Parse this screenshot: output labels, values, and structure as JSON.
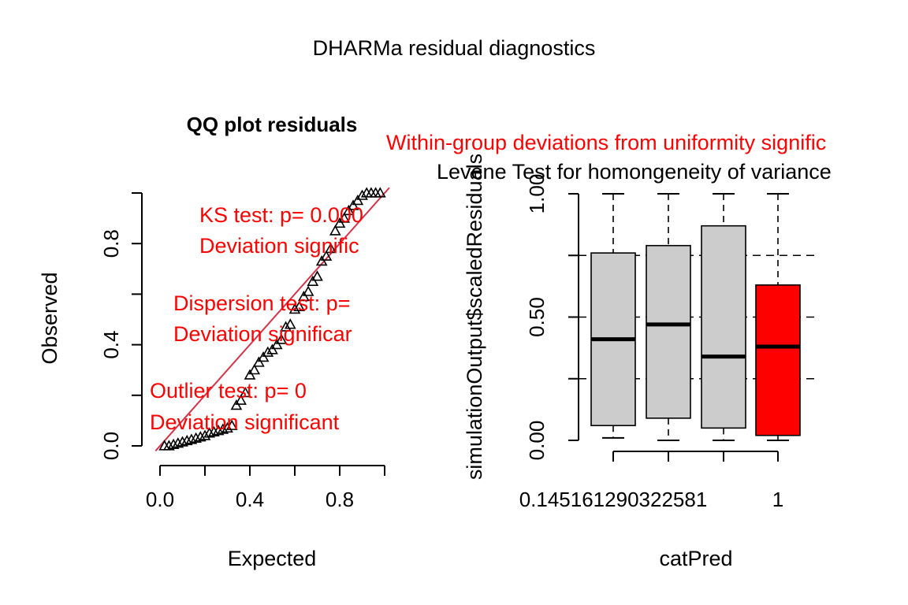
{
  "title": "DHARMa residual diagnostics",
  "chart_data": [
    {
      "type": "scatter",
      "title": "QQ plot residuals",
      "xlabel": "Expected",
      "ylabel": "Observed",
      "xlim": [
        0,
        1
      ],
      "ylim": [
        0,
        1
      ],
      "xticks": [
        "0.0",
        "0.4",
        "0.8"
      ],
      "yticks": [
        "0.0",
        "0.4",
        "0.8"
      ],
      "grid": false,
      "reference_line": {
        "slope": 1,
        "intercept": 0,
        "color": "#d4344a"
      },
      "marker": "triangle",
      "x": [
        0.02,
        0.04,
        0.06,
        0.08,
        0.1,
        0.12,
        0.14,
        0.16,
        0.18,
        0.2,
        0.22,
        0.24,
        0.26,
        0.28,
        0.3,
        0.32,
        0.34,
        0.36,
        0.38,
        0.4,
        0.42,
        0.44,
        0.46,
        0.48,
        0.5,
        0.52,
        0.54,
        0.56,
        0.58,
        0.6,
        0.62,
        0.64,
        0.66,
        0.68,
        0.7,
        0.72,
        0.74,
        0.76,
        0.78,
        0.8,
        0.82,
        0.84,
        0.86,
        0.88,
        0.9,
        0.92,
        0.94,
        0.96,
        0.98
      ],
      "y": [
        0.0,
        0.0,
        0.005,
        0.01,
        0.015,
        0.02,
        0.025,
        0.03,
        0.035,
        0.04,
        0.05,
        0.055,
        0.06,
        0.065,
        0.07,
        0.08,
        0.16,
        0.18,
        0.21,
        0.28,
        0.3,
        0.33,
        0.35,
        0.37,
        0.38,
        0.4,
        0.42,
        0.47,
        0.48,
        0.54,
        0.55,
        0.59,
        0.61,
        0.65,
        0.67,
        0.73,
        0.75,
        0.78,
        0.85,
        0.88,
        0.9,
        0.93,
        0.95,
        0.97,
        0.99,
        1.0,
        1.0,
        1.0,
        1.0
      ],
      "annotations": [
        {
          "lines": [
            "KS test: p= 0.000",
            "Deviation  signific"
          ],
          "color": "#ff0000"
        },
        {
          "lines": [
            "Dispersion test: p=",
            "Deviation  significar"
          ],
          "color": "#ff0000"
        },
        {
          "lines": [
            "Outlier test: p= 0",
            "Deviation  significant"
          ],
          "color": "#ff0000"
        }
      ]
    },
    {
      "type": "boxplot",
      "title_lines": [
        {
          "text": "Within-group deviations from uniformity signific",
          "color": "#ff0000"
        },
        {
          "text": "Levene Test for homongeneity of variance",
          "color": "#000000"
        }
      ],
      "xlabel": "catPred",
      "ylabel": "simulationOutput$scaledResiduals",
      "ylim": [
        0,
        1
      ],
      "yticks": [
        "0.00",
        "0.50",
        "1.00"
      ],
      "xtick_labels": [
        "0.145161290322581",
        "1"
      ],
      "reference_lines": [
        0.25,
        0.5,
        0.75
      ],
      "boxes": [
        {
          "whisker_low": 0.01,
          "q1": 0.06,
          "median": 0.41,
          "q3": 0.76,
          "whisker_high": 1.0,
          "color": "#cccccc"
        },
        {
          "whisker_low": 0.0,
          "q1": 0.09,
          "median": 0.47,
          "q3": 0.79,
          "whisker_high": 1.0,
          "color": "#cccccc"
        },
        {
          "whisker_low": 0.0,
          "q1": 0.05,
          "median": 0.34,
          "q3": 0.87,
          "whisker_high": 1.0,
          "color": "#cccccc"
        },
        {
          "whisker_low": 0.0,
          "q1": 0.02,
          "median": 0.38,
          "q3": 0.63,
          "whisker_high": 1.0,
          "color": "#ff0000"
        }
      ]
    }
  ]
}
